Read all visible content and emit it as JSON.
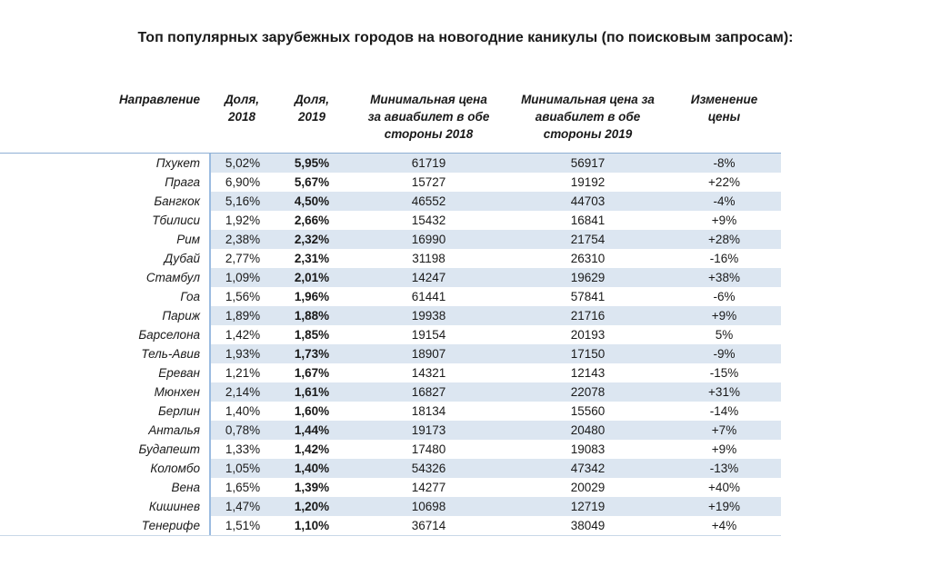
{
  "chart_data": {
    "type": "table",
    "title": "Топ популярных зарубежных городов на новогодние каникулы (по поисковым запросам):",
    "columns": [
      "Направление",
      "Доля, 2018",
      "Доля, 2019",
      "Минимальная цена за авиабилет в обе стороны 2018",
      "Минимальная цена за авиабилет в обе стороны 2019",
      "Изменение цены"
    ],
    "rows": [
      [
        "Пхукет",
        "5,02%",
        "5,95%",
        61719,
        56917,
        "-8%"
      ],
      [
        "Прага",
        "6,90%",
        "5,67%",
        15727,
        19192,
        "+22%"
      ],
      [
        "Бангкок",
        "5,16%",
        "4,50%",
        46552,
        44703,
        "-4%"
      ],
      [
        "Тбилиси",
        "1,92%",
        "2,66%",
        15432,
        16841,
        "+9%"
      ],
      [
        "Рим",
        "2,38%",
        "2,32%",
        16990,
        21754,
        "+28%"
      ],
      [
        "Дубай",
        "2,77%",
        "2,31%",
        31198,
        26310,
        "-16%"
      ],
      [
        "Стамбул",
        "1,09%",
        "2,01%",
        14247,
        19629,
        "+38%"
      ],
      [
        "Гоа",
        "1,56%",
        "1,96%",
        61441,
        57841,
        "-6%"
      ],
      [
        "Париж",
        "1,89%",
        "1,88%",
        19938,
        21716,
        "+9%"
      ],
      [
        "Барселона",
        "1,42%",
        "1,85%",
        19154,
        20193,
        "5%"
      ],
      [
        "Тель-Авив",
        "1,93%",
        "1,73%",
        18907,
        17150,
        "-9%"
      ],
      [
        "Ереван",
        "1,21%",
        "1,67%",
        14321,
        12143,
        "-15%"
      ],
      [
        "Мюнхен",
        "2,14%",
        "1,61%",
        16827,
        22078,
        "+31%"
      ],
      [
        "Берлин",
        "1,40%",
        "1,60%",
        18134,
        15560,
        "-14%"
      ],
      [
        "Анталья",
        "0,78%",
        "1,44%",
        19173,
        20480,
        "+7%"
      ],
      [
        "Будапешт",
        "1,33%",
        "1,42%",
        17480,
        19083,
        "+9%"
      ],
      [
        "Коломбо",
        "1,05%",
        "1,40%",
        54326,
        47342,
        "-13%"
      ],
      [
        "Вена",
        "1,65%",
        "1,39%",
        14277,
        20029,
        "+40%"
      ],
      [
        "Кишинев",
        "1,47%",
        "1,20%",
        10698,
        12719,
        "+19%"
      ],
      [
        "Тенерифе",
        "1,51%",
        "1,10%",
        36714,
        38049,
        "+4%"
      ]
    ]
  },
  "header_display": [
    "Направление",
    "Доля,\n2018",
    "Доля,\n2019",
    "Минимальная цена\nза авиабилет в обе\nстороны 2018",
    "Минимальная цена за\nавиабилет в обе\nстороны 2019",
    "Изменение\nцены"
  ],
  "colors": {
    "row_shade": "#dce6f1",
    "divider": "#9cbce0",
    "table_top_border": "#8fafd4",
    "table_bottom_border": "#c9d8e8",
    "text": "#1a1a1a"
  }
}
